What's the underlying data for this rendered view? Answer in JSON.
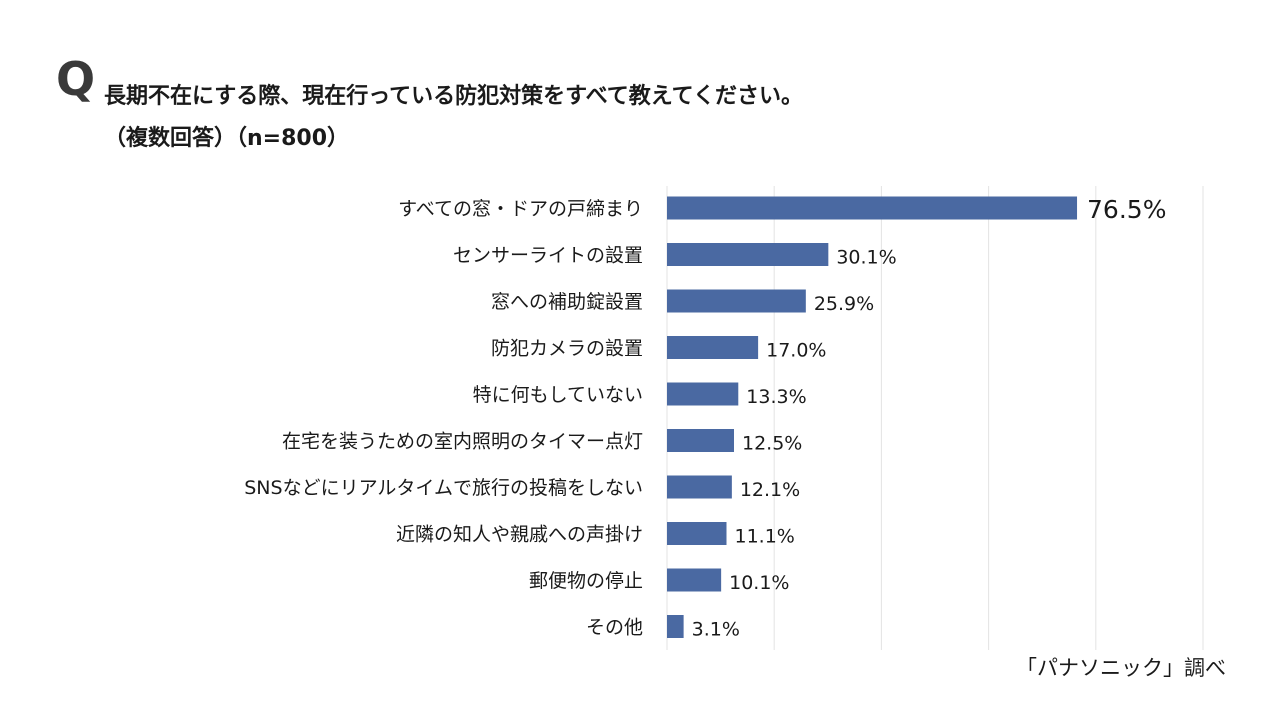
{
  "question": {
    "mark": "Q",
    "title": "長期不在にする際、現在行っている防犯対策をすべて教えてください。",
    "subtitle": "（複数回答）（n=800）"
  },
  "credit": "「パナソニック」調べ",
  "colors": {
    "bar": "#4a69a2",
    "grid": "#e3e3e3",
    "text": "#1a1a1a"
  },
  "chart_data": {
    "type": "bar",
    "orientation": "horizontal",
    "categories": [
      "すべての窓・ドアの戸締まり",
      "センサーライトの設置",
      "窓への補助錠設置",
      "防犯カメラの設置",
      "特に何もしていない",
      "在宅を装うための室内照明のタイマー点灯",
      "SNSなどにリアルタイムで旅行の投稿をしない",
      "近隣の知人や親戚への声掛け",
      "郵便物の停止",
      "その他"
    ],
    "values": [
      76.5,
      30.1,
      25.9,
      17.0,
      13.3,
      12.5,
      12.1,
      11.1,
      10.1,
      3.1
    ],
    "data_labels": [
      "76.5%",
      "30.1%",
      "25.9%",
      "17.0%",
      "13.3%",
      "12.5%",
      "12.1%",
      "11.1%",
      "10.1%",
      "3.1%"
    ],
    "xlim": [
      0,
      100
    ],
    "grid": true,
    "legend": "none"
  }
}
